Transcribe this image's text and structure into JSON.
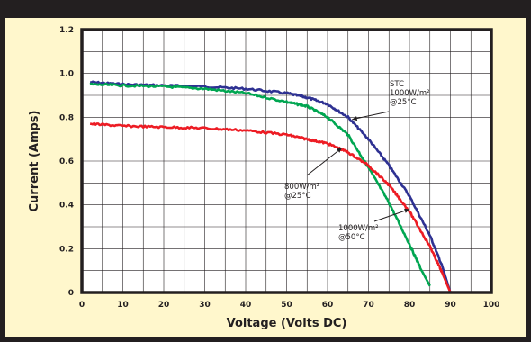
{
  "chart_data": {
    "type": "line",
    "title": "",
    "xlabel": "Voltage  (Volts DC)",
    "ylabel": "Current  (Amps)",
    "xlim": [
      0,
      100
    ],
    "ylim": [
      0,
      1.2
    ],
    "xticks": [
      "0",
      "10",
      "20",
      "30",
      "40",
      "50",
      "60",
      "70",
      "80",
      "90",
      "100"
    ],
    "yticks": [
      "0",
      "0.2",
      "0.4",
      "0.6",
      "0.8",
      "1.0",
      "1.2"
    ],
    "grid": true,
    "colors": {
      "stc": "#2e3192",
      "hot": "#00a651",
      "low": "#ed1c24",
      "frame": "#231f20",
      "panel": "#fff7cc",
      "grid": "#231f20"
    },
    "annotations": [
      {
        "lines": [
          "STC",
          "1000W/m²",
          "@25°C"
        ],
        "series": "STC 1000W/m² @25°C"
      },
      {
        "lines": [
          "800W/m²",
          "@25°C"
        ],
        "series": "800W/m² @25°C"
      },
      {
        "lines": [
          "1000W/m²",
          "@50°C"
        ],
        "series": "1000W/m² @50°C"
      }
    ],
    "series": [
      {
        "name": "STC 1000W/m² @25°C",
        "color": "#2e3192",
        "x": [
          2,
          10,
          20,
          30,
          40,
          50,
          55,
          60,
          65,
          70,
          75,
          80,
          85,
          88,
          90
        ],
        "y": [
          0.96,
          0.95,
          0.945,
          0.94,
          0.93,
          0.91,
          0.89,
          0.86,
          0.8,
          0.7,
          0.58,
          0.44,
          0.26,
          0.12,
          0.0
        ]
      },
      {
        "name": "1000W/m² @50°C",
        "color": "#00a651",
        "x": [
          2,
          10,
          20,
          30,
          40,
          50,
          55,
          60,
          65,
          70,
          75,
          80,
          83,
          85
        ],
        "y": [
          0.95,
          0.945,
          0.94,
          0.93,
          0.91,
          0.87,
          0.85,
          0.8,
          0.72,
          0.57,
          0.41,
          0.22,
          0.1,
          0.03
        ]
      },
      {
        "name": "800W/m² @25°C",
        "color": "#ed1c24",
        "x": [
          2,
          10,
          20,
          30,
          40,
          50,
          55,
          60,
          65,
          70,
          75,
          80,
          85,
          88,
          90
        ],
        "y": [
          0.77,
          0.76,
          0.755,
          0.75,
          0.74,
          0.72,
          0.7,
          0.68,
          0.64,
          0.58,
          0.49,
          0.37,
          0.21,
          0.09,
          0.0
        ]
      }
    ]
  }
}
